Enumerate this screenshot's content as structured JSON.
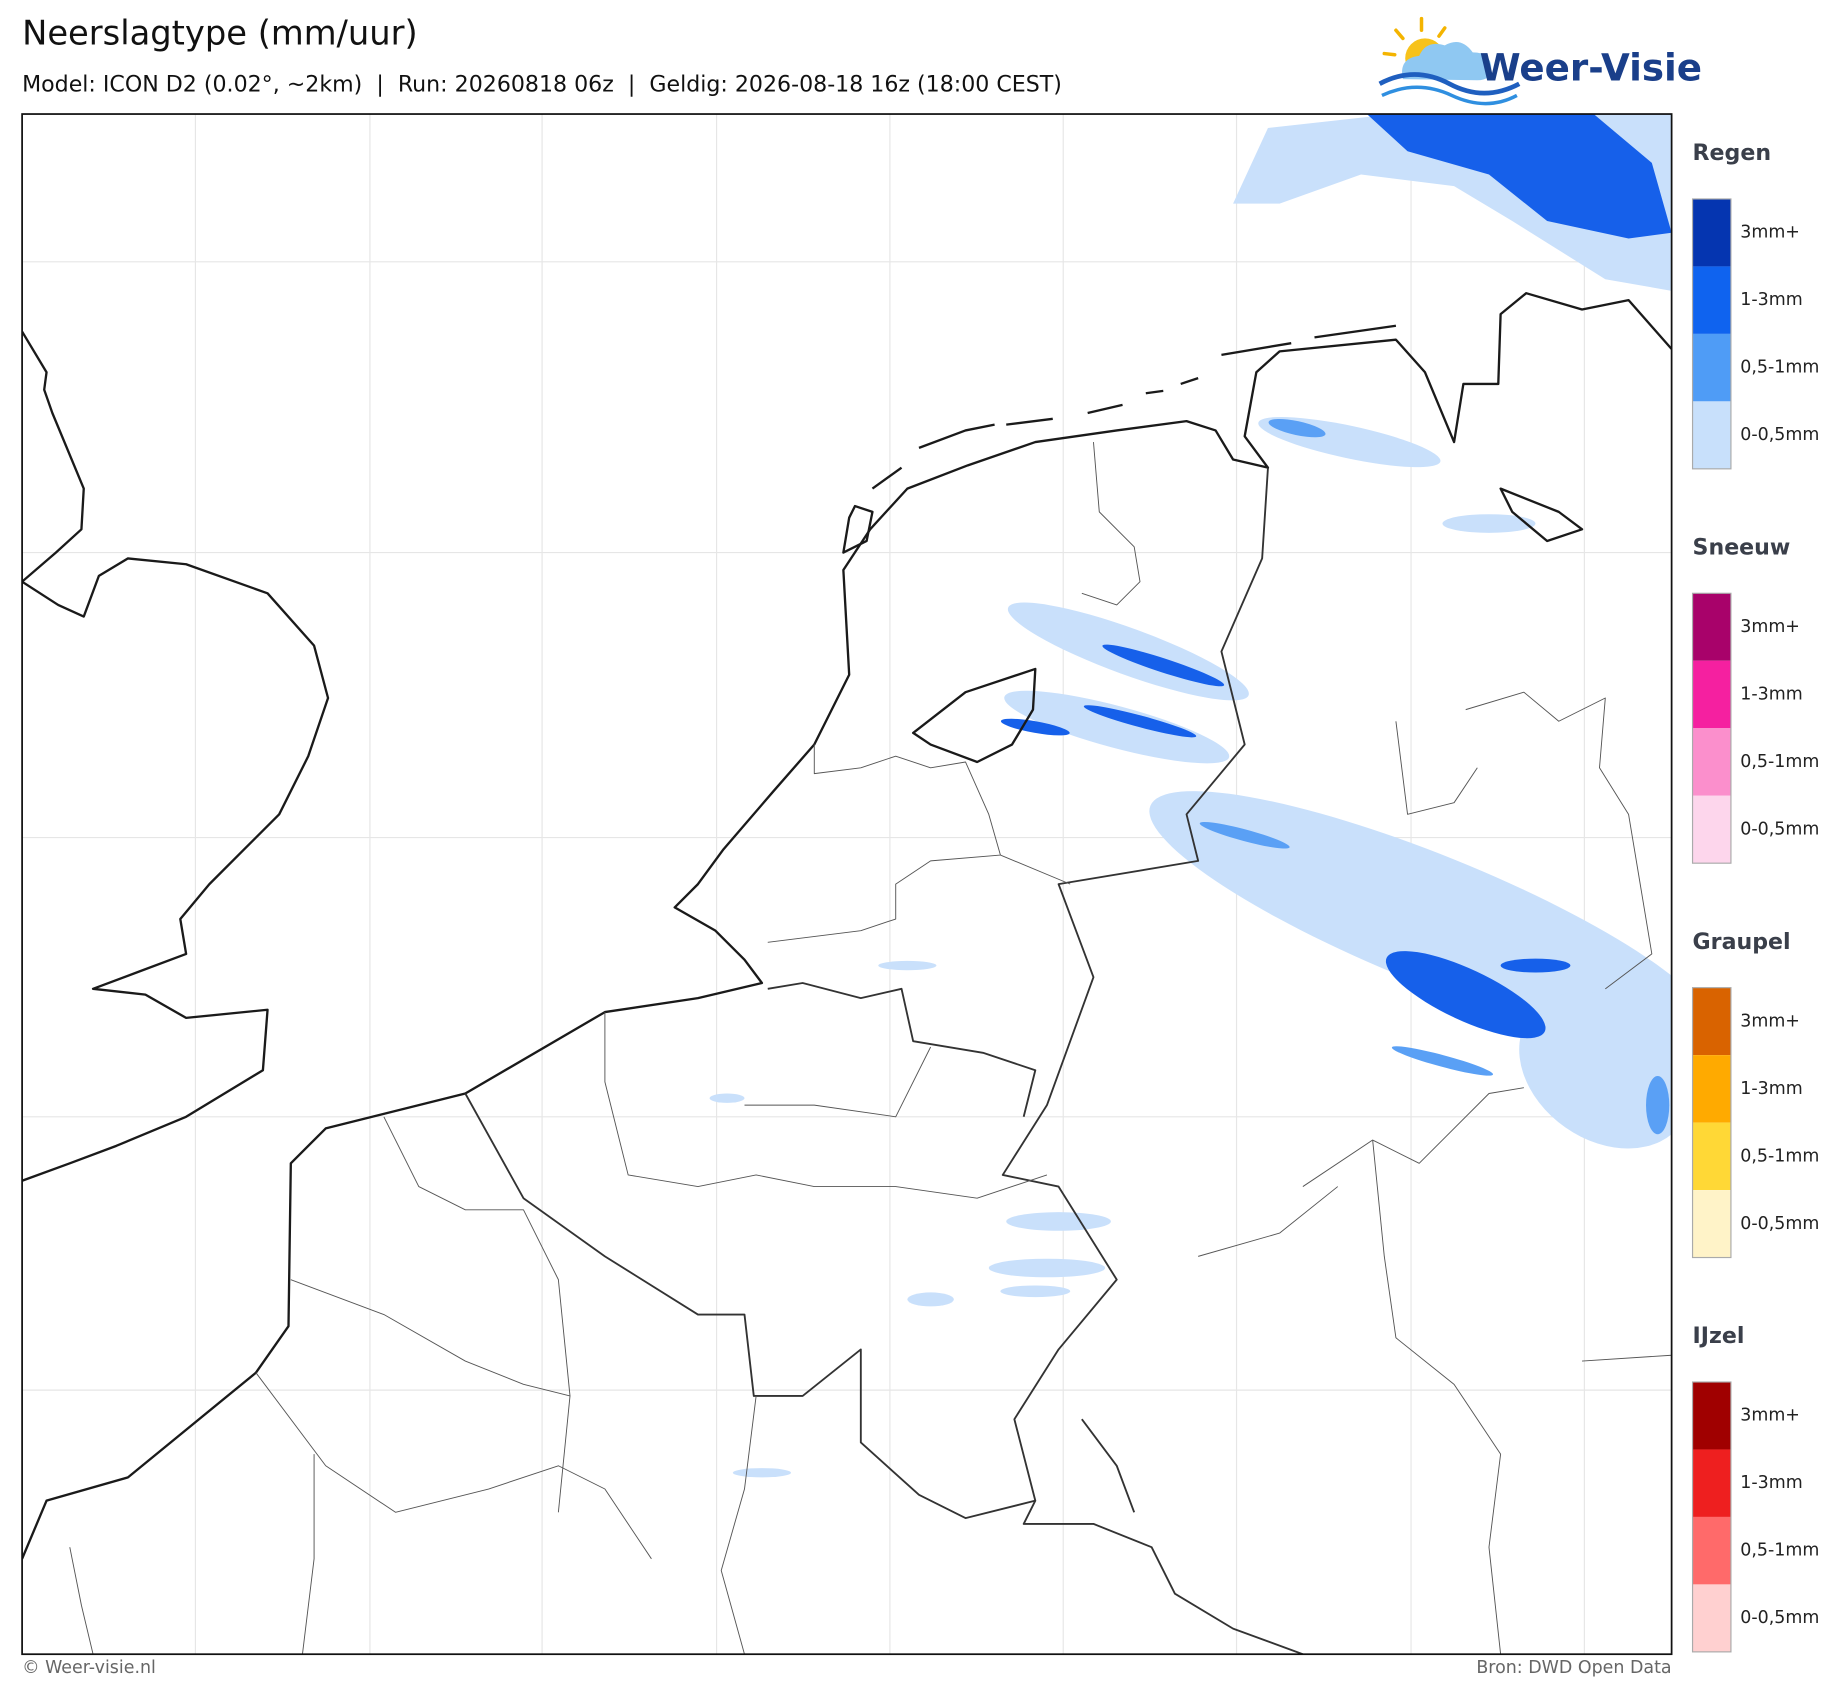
{
  "header": {
    "title": "Neerslagtype (mm/uur)",
    "subtitle": "Model: ICON D2 (0.02°, ~2km)  |  Run: 20260818 06z  |  Geldig: 2026-08-18 16z (18:00 CEST)"
  },
  "logo": {
    "text": "Weer-Visie"
  },
  "legend": {
    "groups": [
      {
        "title": "Regen",
        "items": [
          "3mm+",
          "1-3mm",
          "0,5-1mm",
          "0-0,5mm"
        ],
        "colors": [
          "#0535b0",
          "#0f63ef",
          "#4f9cf6",
          "#c8e0fb"
        ]
      },
      {
        "title": "Sneeuw",
        "items": [
          "3mm+",
          "1-3mm",
          "0,5-1mm",
          "0-0,5mm"
        ],
        "colors": [
          "#a8026a",
          "#f520a0",
          "#fb8fcc",
          "#fdd6ec"
        ]
      },
      {
        "title": "Graupel",
        "items": [
          "3mm+",
          "1-3mm",
          "0,5-1mm",
          "0-0,5mm"
        ],
        "colors": [
          "#d96300",
          "#ffaa00",
          "#ffd836",
          "#fff3c8"
        ]
      },
      {
        "title": "IJzel",
        "items": [
          "3mm+",
          "1-3mm",
          "0,5-1mm",
          "0-0,5mm"
        ],
        "colors": [
          "#a00000",
          "#ee1f1f",
          "#ff6a6a",
          "#ffd0d0"
        ]
      }
    ]
  },
  "footer": {
    "left": "© Weer-visie.nl",
    "right": "Bron: DWD Open Data"
  }
}
